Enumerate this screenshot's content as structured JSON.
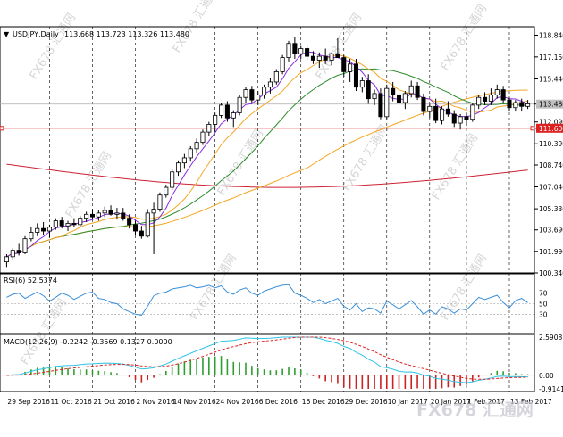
{
  "colors": {
    "background": "#ffffff",
    "frame": "#000000",
    "candle_up": "#ffffff",
    "candle_down": "#000000",
    "ma_fast": "#8a2be2",
    "ma_mid": "#f5a623",
    "ma_trend": "#2e8b2e",
    "ma_long": "#f5a623",
    "ma_slow": "#cc2233",
    "support_line": "#dd2222",
    "price_line": "#aaaaaa",
    "rsi_line": "#3a8fd9",
    "macd_line": "#2ec4e6",
    "signal_line": "#dd2222",
    "hist_pos": "#2e9e2e",
    "hist_neg": "#cc2222",
    "watermark": "#d6d6d6"
  },
  "header": {
    "symbol_label": "USDJPY,Daily",
    "ohlc": "113.668 113.723 113.326 113.480"
  },
  "watermark": {
    "text": "FX678 汇通网"
  },
  "footer_logo": {
    "text": "FX678 汇通网"
  },
  "chart_data": [
    {
      "type": "candlestick",
      "symbol": "USDJPY",
      "timeframe": "Daily",
      "ylim": [
        100.34,
        119.5
      ],
      "y_ticks": [
        "118.840",
        "117.150",
        "115.440",
        "113.480",
        "112.090",
        "111.600",
        "110.390",
        "108.740",
        "107.040",
        "105.330",
        "103.690",
        "101.990",
        "100.340"
      ],
      "current_price": 113.48,
      "horizontal_line": 111.6,
      "x_tick_labels": [
        "29 Sep 2016",
        "11 Oct 2016",
        "21 Oct 2016",
        "2 Nov 2016",
        "14 Nov 2016",
        "24 Nov 2016",
        "6 Dec 2016",
        "16 Dec 2016",
        "29 Dec 2016",
        "10 Jan 2017",
        "20 Jan 2017",
        "1 Feb 2017",
        "13 Feb 2017"
      ],
      "candles": [
        [
          101.2,
          101.8,
          100.8,
          101.6
        ],
        [
          101.6,
          102.3,
          101.4,
          102.1
        ],
        [
          102.1,
          102.6,
          101.7,
          101.9
        ],
        [
          101.9,
          103.2,
          101.8,
          103.0
        ],
        [
          103.0,
          103.9,
          102.8,
          103.5
        ],
        [
          103.5,
          104.2,
          103.2,
          103.8
        ],
        [
          103.8,
          104.3,
          103.3,
          103.6
        ],
        [
          103.6,
          104.1,
          103.1,
          103.9
        ],
        [
          103.9,
          104.6,
          103.7,
          104.4
        ],
        [
          104.4,
          104.7,
          103.8,
          104.0
        ],
        [
          104.0,
          104.4,
          103.6,
          104.2
        ],
        [
          104.2,
          104.6,
          103.9,
          104.1
        ],
        [
          104.1,
          104.8,
          103.9,
          104.6
        ],
        [
          104.6,
          105.1,
          104.3,
          104.9
        ],
        [
          104.9,
          105.3,
          104.5,
          104.7
        ],
        [
          104.7,
          105.2,
          104.4,
          105.0
        ],
        [
          105.0,
          105.5,
          104.7,
          105.2
        ],
        [
          105.2,
          105.6,
          104.8,
          104.9
        ],
        [
          104.9,
          105.4,
          104.5,
          105.0
        ],
        [
          105.0,
          105.4,
          104.4,
          104.6
        ],
        [
          104.6,
          104.9,
          103.8,
          104.1
        ],
        [
          104.1,
          104.4,
          103.3,
          103.6
        ],
        [
          103.6,
          104.0,
          103.0,
          103.2
        ],
        [
          103.2,
          105.3,
          103.1,
          105.0
        ],
        [
          105.0,
          105.8,
          101.8,
          105.3
        ],
        [
          105.3,
          106.6,
          105.1,
          106.4
        ],
        [
          106.4,
          107.2,
          106.2,
          107.0
        ],
        [
          107.0,
          108.4,
          106.8,
          108.2
        ],
        [
          108.2,
          109.1,
          107.9,
          108.9
        ],
        [
          108.9,
          109.6,
          108.5,
          109.3
        ],
        [
          109.3,
          110.2,
          109.0,
          110.0
        ],
        [
          110.0,
          110.8,
          109.7,
          110.5
        ],
        [
          110.5,
          111.5,
          110.3,
          111.3
        ],
        [
          111.3,
          112.1,
          111.0,
          111.9
        ],
        [
          111.9,
          112.8,
          111.3,
          112.6
        ],
        [
          112.6,
          113.6,
          112.4,
          113.4
        ],
        [
          113.4,
          113.7,
          112.1,
          112.4
        ],
        [
          112.4,
          113.0,
          111.7,
          112.8
        ],
        [
          112.8,
          114.2,
          112.6,
          114.0
        ],
        [
          114.0,
          114.8,
          113.6,
          114.6
        ],
        [
          114.6,
          114.9,
          113.5,
          113.8
        ],
        [
          113.8,
          114.5,
          113.4,
          114.2
        ],
        [
          114.2,
          115.0,
          113.9,
          114.8
        ],
        [
          114.8,
          115.5,
          114.3,
          115.2
        ],
        [
          115.2,
          116.2,
          115.0,
          116.0
        ],
        [
          116.0,
          117.3,
          115.8,
          117.1
        ],
        [
          117.1,
          118.4,
          116.8,
          118.2
        ],
        [
          118.2,
          118.7,
          117.0,
          117.4
        ],
        [
          117.4,
          118.0,
          117.0,
          117.8
        ],
        [
          117.8,
          118.0,
          116.9,
          117.2
        ],
        [
          117.2,
          117.6,
          116.6,
          116.9
        ],
        [
          116.9,
          117.5,
          116.3,
          117.2
        ],
        [
          117.2,
          117.8,
          116.6,
          116.9
        ],
        [
          116.9,
          117.5,
          116.5,
          117.4
        ],
        [
          117.4,
          118.6,
          117.1,
          117.1
        ],
        [
          117.1,
          117.3,
          115.6,
          116.0
        ],
        [
          116.0,
          117.0,
          115.2,
          116.6
        ],
        [
          116.6,
          117.0,
          114.5,
          114.8
        ],
        [
          114.8,
          115.6,
          114.4,
          115.3
        ],
        [
          115.3,
          115.8,
          113.5,
          113.9
        ],
        [
          113.9,
          114.6,
          113.4,
          114.3
        ],
        [
          114.3,
          114.7,
          112.3,
          112.5
        ],
        [
          112.5,
          115.0,
          112.3,
          114.7
        ],
        [
          114.7,
          115.2,
          113.7,
          114.2
        ],
        [
          114.2,
          114.6,
          113.3,
          113.6
        ],
        [
          113.6,
          114.5,
          113.1,
          114.3
        ],
        [
          114.3,
          115.3,
          114.0,
          114.9
        ],
        [
          114.9,
          115.2,
          113.8,
          114.0
        ],
        [
          114.0,
          114.3,
          112.6,
          112.9
        ],
        [
          112.9,
          113.5,
          112.4,
          113.3
        ],
        [
          113.3,
          113.9,
          112.0,
          112.2
        ],
        [
          112.2,
          113.3,
          111.9,
          113.1
        ],
        [
          113.1,
          113.7,
          112.5,
          112.7
        ],
        [
          112.7,
          113.0,
          111.7,
          112.0
        ],
        [
          112.0,
          112.7,
          111.5,
          112.5
        ],
        [
          112.5,
          112.8,
          111.8,
          112.3
        ],
        [
          112.3,
          113.6,
          112.1,
          113.4
        ],
        [
          113.4,
          114.2,
          113.1,
          114.0
        ],
        [
          114.0,
          114.4,
          113.4,
          113.7
        ],
        [
          113.7,
          114.7,
          113.4,
          114.2
        ],
        [
          114.2,
          115.0,
          113.9,
          114.6
        ],
        [
          114.6,
          114.9,
          113.5,
          113.8
        ],
        [
          113.8,
          114.0,
          112.9,
          113.2
        ],
        [
          113.2,
          113.8,
          112.9,
          113.6
        ],
        [
          113.6,
          113.9,
          112.9,
          113.3
        ],
        [
          113.3,
          113.8,
          113.1,
          113.5
        ]
      ]
    },
    {
      "type": "line",
      "title": "RSI(6) 52.5374",
      "ylim": [
        0,
        100
      ],
      "y_ticks": [
        70,
        50,
        30
      ],
      "values": [
        62,
        68,
        70,
        60,
        66,
        72,
        65,
        55,
        62,
        70,
        66,
        58,
        64,
        70,
        72,
        60,
        58,
        52,
        50,
        40,
        35,
        30,
        28,
        45,
        65,
        70,
        72,
        78,
        80,
        82,
        85,
        80,
        82,
        85,
        80,
        84,
        72,
        68,
        76,
        80,
        70,
        66,
        74,
        78,
        82,
        85,
        86,
        70,
        66,
        60,
        52,
        58,
        50,
        55,
        60,
        45,
        38,
        50,
        35,
        42,
        40,
        32,
        55,
        48,
        40,
        48,
        56,
        44,
        30,
        38,
        30,
        44,
        40,
        32,
        40,
        38,
        50,
        62,
        58,
        62,
        66,
        52,
        42,
        56,
        60,
        52
      ]
    },
    {
      "type": "line",
      "title": "MACD(12,26,9) -0.2242 -0.3569 0.1327 0.0000",
      "ylim": [
        -0.9141,
        2.5908
      ],
      "y_ticks": [
        2.5908,
        0.0,
        -0.9141
      ]
    }
  ]
}
